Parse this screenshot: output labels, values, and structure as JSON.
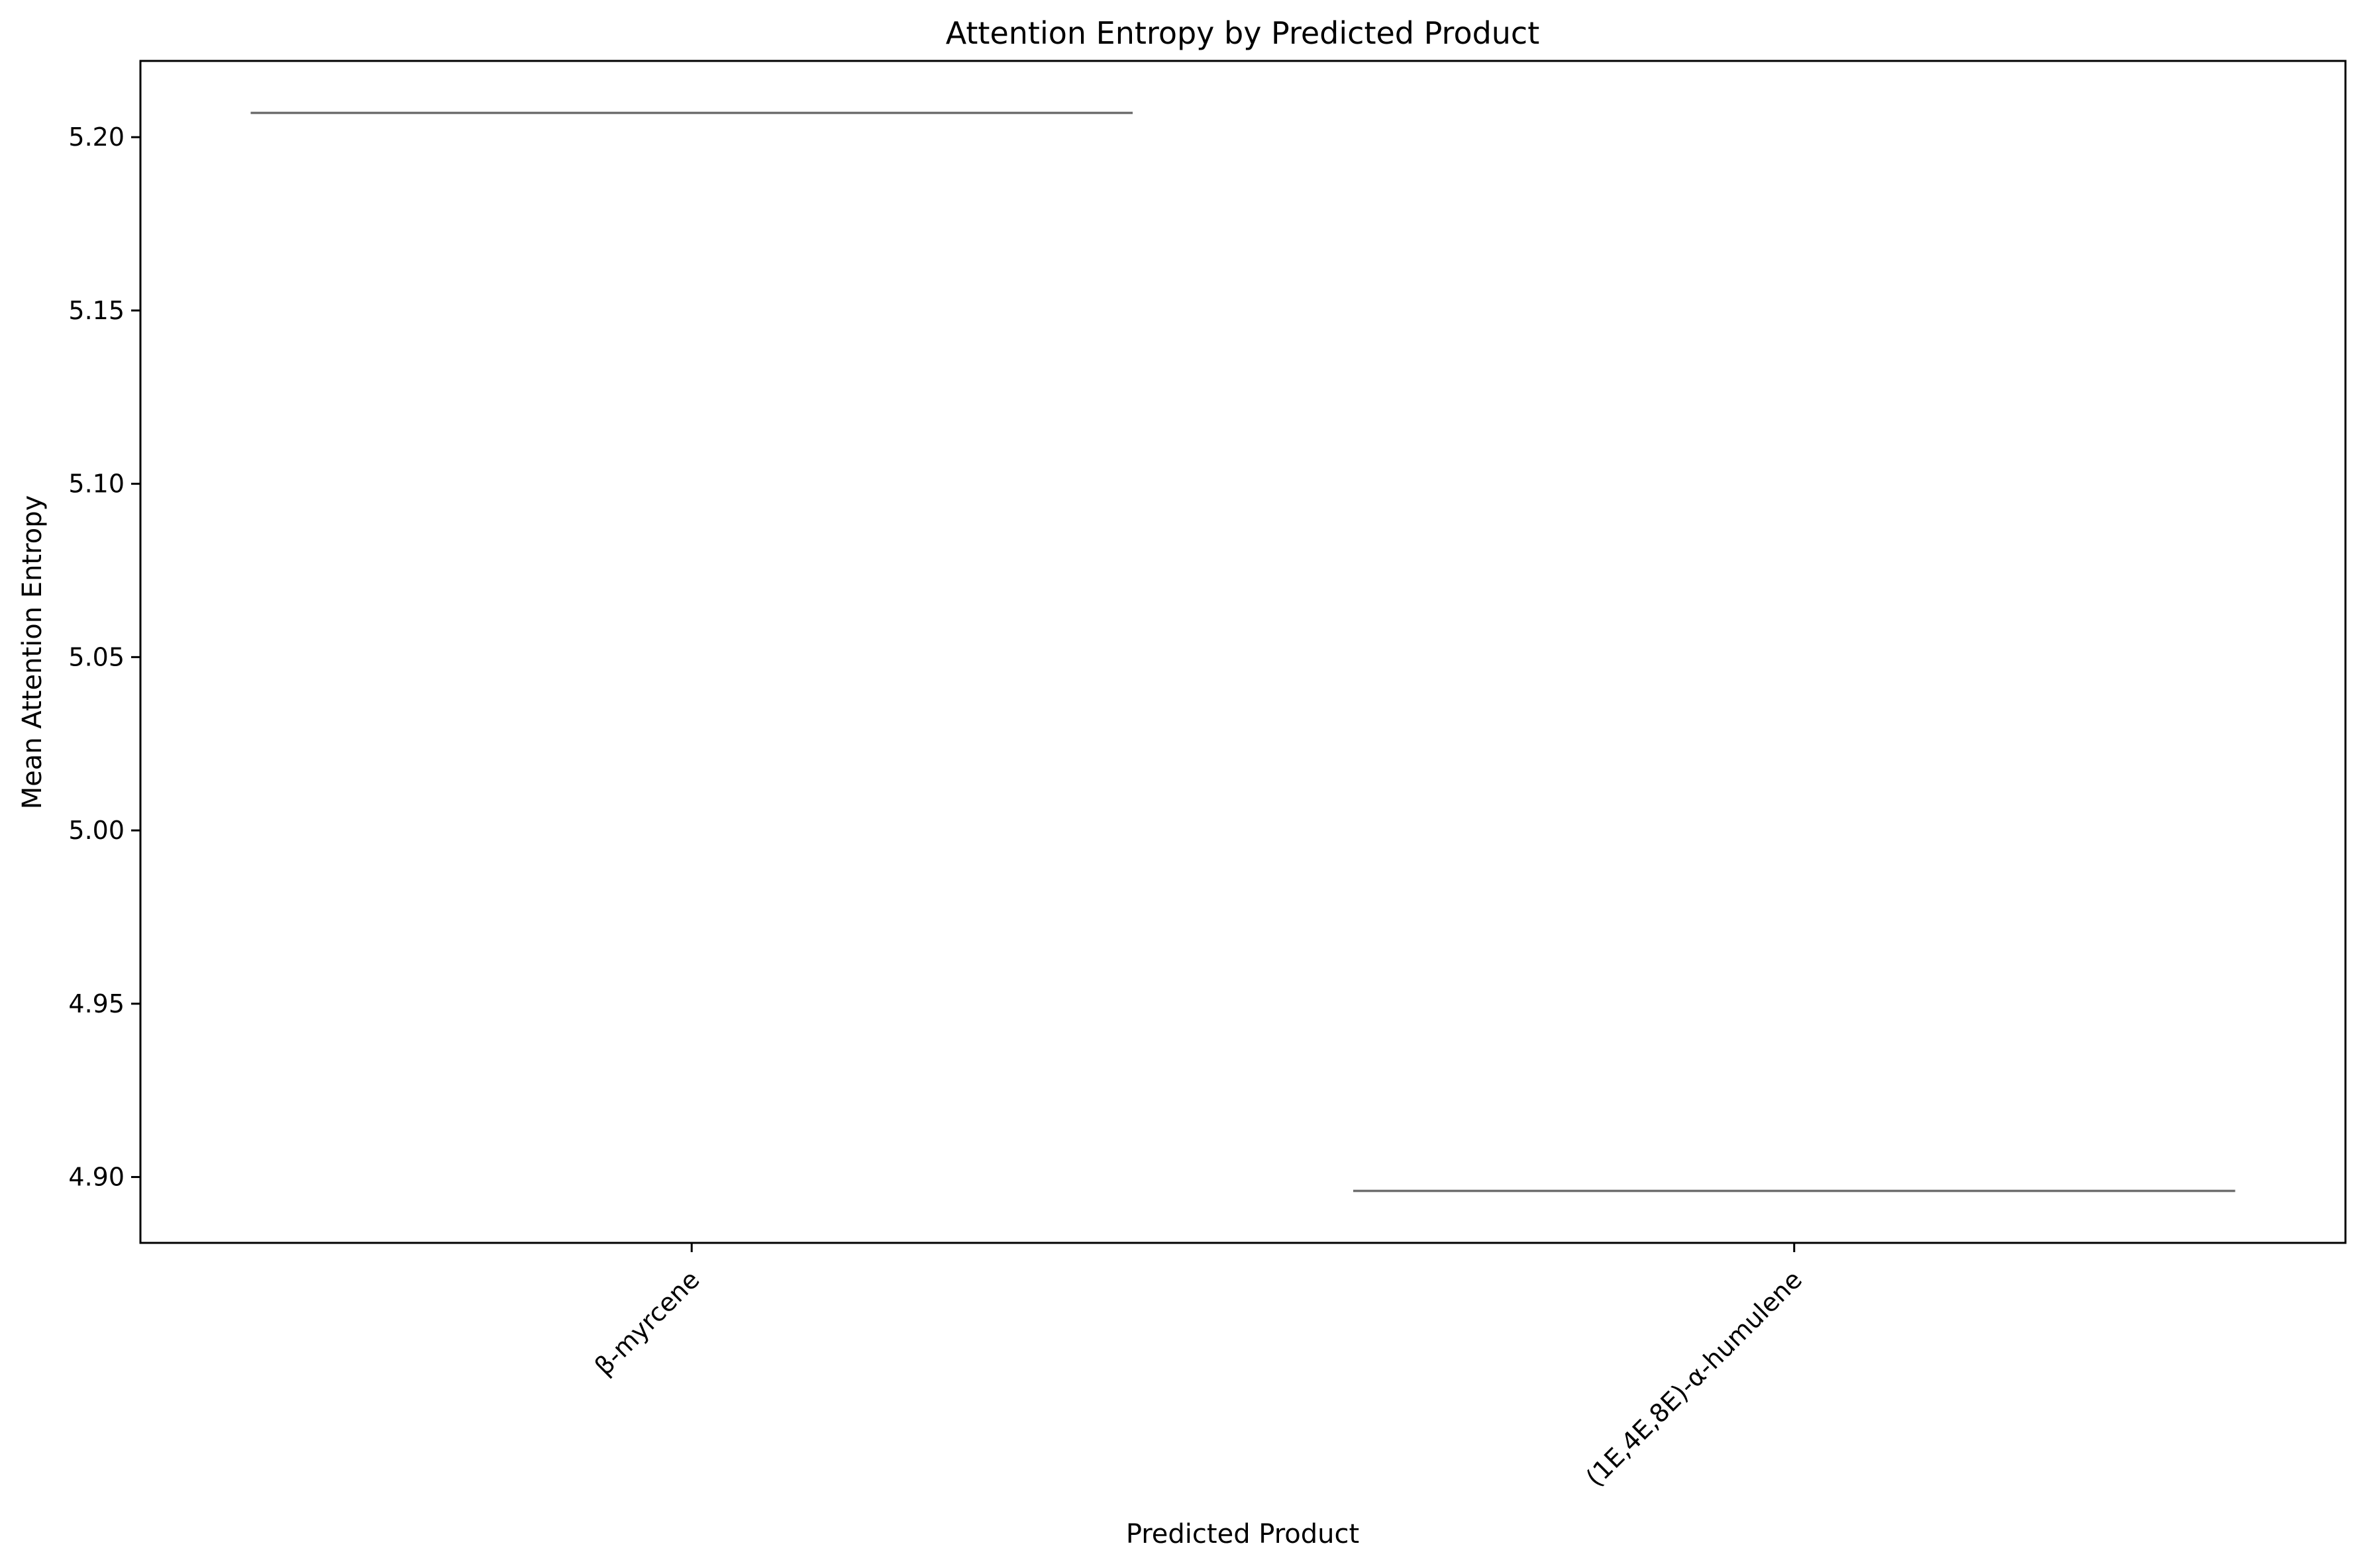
{
  "chart_data": {
    "type": "box",
    "title": "Attention Entropy by Predicted Product",
    "xlabel": "Predicted Product",
    "ylabel": "Mean Attention Entropy",
    "categories": [
      "β-myrcene",
      "(1E,4E,8E)-α-humulene"
    ],
    "values": [
      5.207,
      4.896
    ],
    "ylim": [
      4.881,
      5.222
    ],
    "yticks": [
      4.9,
      4.95,
      5.0,
      5.05,
      5.1,
      5.15,
      5.2
    ],
    "ytick_labels": [
      "4.90",
      "4.95",
      "5.00",
      "5.05",
      "5.10",
      "5.15",
      "5.20"
    ],
    "grid": false,
    "line_color": "#6e6e6e",
    "axis_color": "#000000"
  }
}
